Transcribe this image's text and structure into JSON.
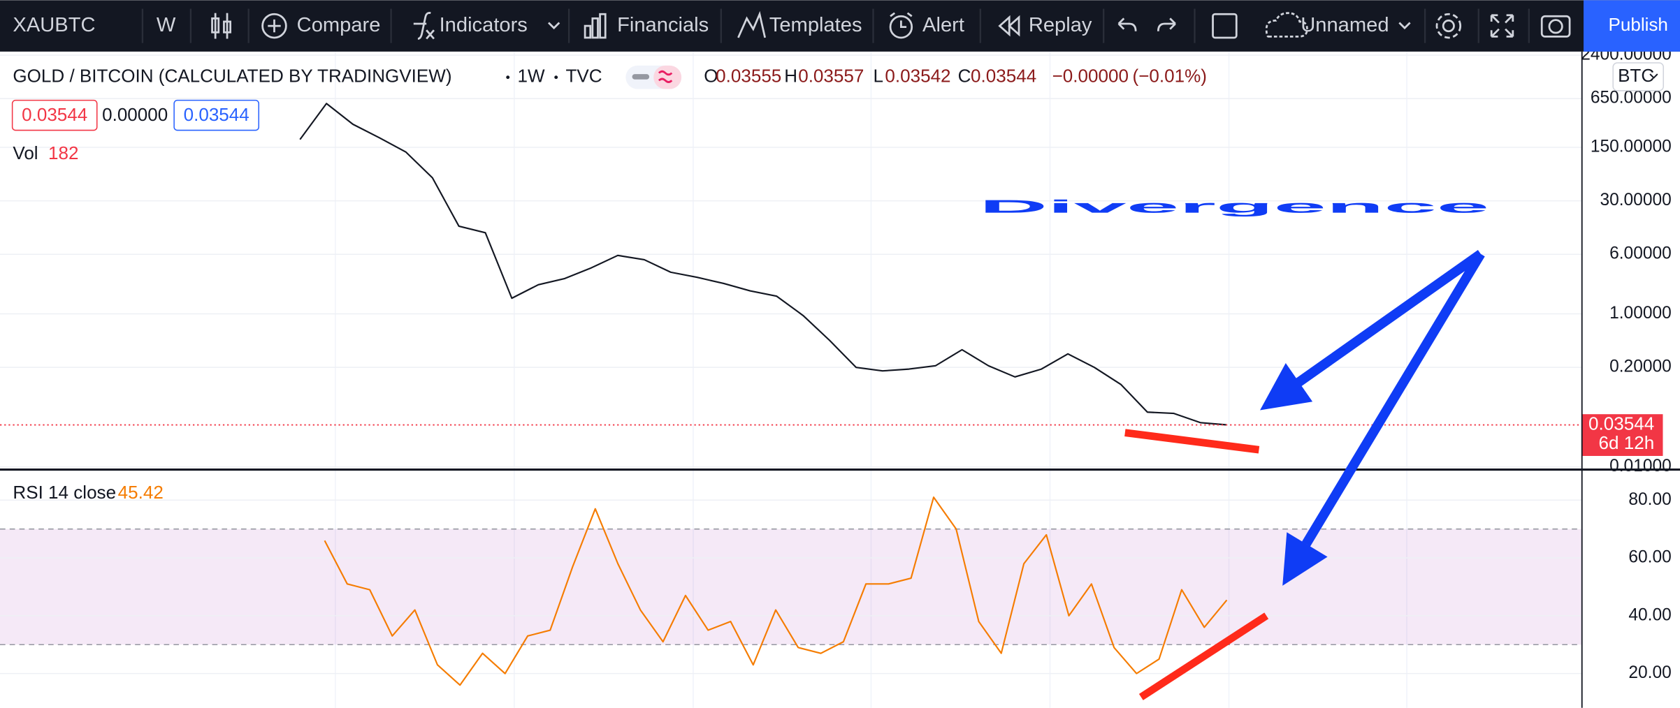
{
  "toolbar": {
    "symbol": "XAUBTC",
    "interval": "W",
    "compare": "Compare",
    "indicators": "Indicators",
    "financials": "Financials",
    "templates": "Templates",
    "alert": "Alert",
    "replay": "Replay",
    "layout_name": "Unnamed",
    "publish": "Publish"
  },
  "annotation": "Divergence",
  "chart_data": [
    {
      "type": "line",
      "title": "GOLD / BITCOIN (CALCULATED BY TRADINGVIEW)",
      "interval": "1W",
      "exchange": "TVC",
      "currency": "BTC",
      "legend": {
        "open_label": "O",
        "open": "0.03555",
        "high_label": "H",
        "high": "0.03557",
        "low_label": "L",
        "low": "0.03542",
        "close_label": "C",
        "close": "0.03544",
        "change": "−0.00000",
        "change_pct": "(−0.01%)",
        "bid": "0.03544",
        "spread": "0.00000",
        "ask": "0.03544",
        "volume_label": "Vol",
        "volume": "182"
      },
      "log_scale": true,
      "color": "#131722",
      "values": [
        190,
        560,
        300,
        200,
        130,
        60,
        14,
        11.5,
        1.6,
        2.4,
        2.9,
        4,
        5.8,
        5.1,
        3.5,
        3.0,
        2.5,
        2.0,
        1.7,
        0.95,
        0.45,
        0.2,
        0.18,
        0.19,
        0.21,
        0.34,
        0.21,
        0.15,
        0.19,
        0.3,
        0.2,
        0.12,
        0.052,
        0.05,
        0.038,
        0.03544
      ],
      "ylim": [
        0.00938,
        2672
      ],
      "yticks": [
        {
          "value": 2400,
          "label": "2400.00000"
        },
        {
          "value": 650,
          "label": "650.00000"
        },
        {
          "value": 150,
          "label": "150.00000"
        },
        {
          "value": 30,
          "label": "30.00000"
        },
        {
          "value": 6,
          "label": "6.00000"
        },
        {
          "value": 1,
          "label": "1.00000"
        },
        {
          "value": 0.2,
          "label": "0.20000"
        },
        {
          "value": 0.01,
          "label": "0.01000"
        }
      ],
      "grid": true,
      "last_value": {
        "value": 0.03544,
        "label": "0.03544",
        "countdown": "6d 12h",
        "color": "#f23645"
      }
    },
    {
      "type": "line",
      "title": "RSI 14 close",
      "value_label": "45.42",
      "color": "#f57c00",
      "values": [
        66,
        51,
        49,
        33,
        42,
        23,
        16,
        27,
        20,
        33,
        35,
        57,
        77,
        58,
        42,
        31,
        47,
        35,
        38,
        23,
        42,
        29,
        27,
        31,
        51,
        51,
        53,
        81,
        70,
        38,
        27,
        58,
        68,
        40,
        51,
        29,
        20,
        25,
        49,
        36,
        45.42
      ],
      "ylim": [
        8.15,
        90
      ],
      "yticks": [
        {
          "value": 80,
          "label": "80.00"
        },
        {
          "value": 60,
          "label": "60.00"
        },
        {
          "value": 40,
          "label": "40.00"
        },
        {
          "value": 20,
          "label": "20.00"
        }
      ],
      "grid": true,
      "band": [
        30,
        70
      ],
      "band_color": "#9c27b0"
    }
  ]
}
